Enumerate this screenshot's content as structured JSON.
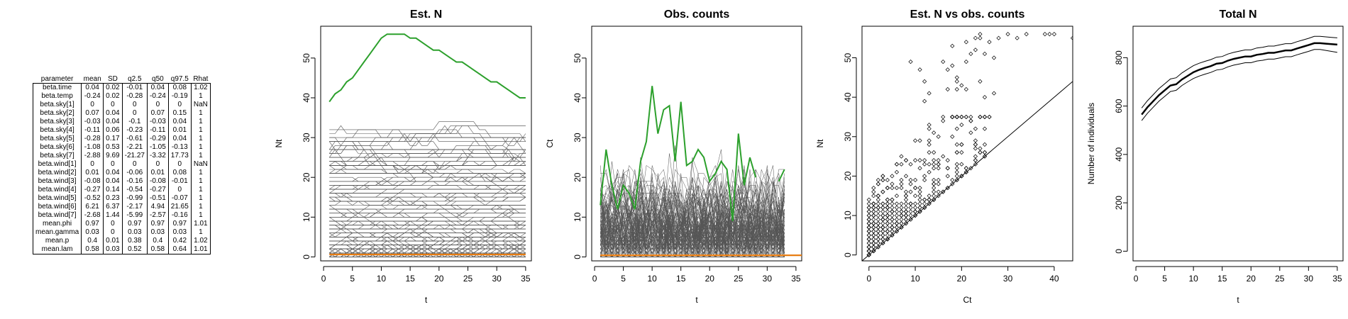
{
  "table": {
    "headers": [
      "parameter",
      "mean",
      "SD",
      "q2.5",
      "q50",
      "q97.5",
      "Rhat"
    ],
    "rows": [
      [
        "beta.time",
        "0.04",
        "0.02",
        "-0.01",
        "0.04",
        "0.08",
        "1.02"
      ],
      [
        "beta.temp",
        "-0.24",
        "0.02",
        "-0.28",
        "-0.24",
        "-0.19",
        "1"
      ],
      [
        "beta.sky[1]",
        "0",
        "0",
        "0",
        "0",
        "0",
        "NaN"
      ],
      [
        "beta.sky[2]",
        "0.07",
        "0.04",
        "0",
        "0.07",
        "0.15",
        "1"
      ],
      [
        "beta.sky[3]",
        "-0.03",
        "0.04",
        "-0.1",
        "-0.03",
        "0.04",
        "1"
      ],
      [
        "beta.sky[4]",
        "-0.11",
        "0.06",
        "-0.23",
        "-0.11",
        "0.01",
        "1"
      ],
      [
        "beta.sky[5]",
        "-0.28",
        "0.17",
        "-0.61",
        "-0.29",
        "0.04",
        "1"
      ],
      [
        "beta.sky[6]",
        "-1.08",
        "0.53",
        "-2.21",
        "-1.05",
        "-0.13",
        "1"
      ],
      [
        "beta.sky[7]",
        "-2.88",
        "9.69",
        "-21.27",
        "-3.32",
        "17.73",
        "1"
      ],
      [
        "beta.wind[1]",
        "0",
        "0",
        "0",
        "0",
        "0",
        "NaN"
      ],
      [
        "beta.wind[2]",
        "0.01",
        "0.04",
        "-0.06",
        "0.01",
        "0.08",
        "1"
      ],
      [
        "beta.wind[3]",
        "-0.08",
        "0.04",
        "-0.16",
        "-0.08",
        "-0.01",
        "1"
      ],
      [
        "beta.wind[4]",
        "-0.27",
        "0.14",
        "-0.54",
        "-0.27",
        "0",
        "1"
      ],
      [
        "beta.wind[5]",
        "-0.52",
        "0.23",
        "-0.99",
        "-0.51",
        "-0.07",
        "1"
      ],
      [
        "beta.wind[6]",
        "6.21",
        "6.37",
        "-2.17",
        "4.94",
        "21.65",
        "1"
      ],
      [
        "beta.wind[7]",
        "-2.68",
        "1.44",
        "-5.99",
        "-2.57",
        "-0.16",
        "1"
      ],
      [
        "mean.phi",
        "0.97",
        "0",
        "0.97",
        "0.97",
        "0.97",
        "1.01"
      ],
      [
        "mean.gamma",
        "0.03",
        "0",
        "0.03",
        "0.03",
        "0.03",
        "1"
      ],
      [
        "mean.p",
        "0.4",
        "0.01",
        "0.38",
        "0.4",
        "0.42",
        "1.02"
      ],
      [
        "mean.lam",
        "0.58",
        "0.03",
        "0.52",
        "0.58",
        "0.64",
        "1.01"
      ]
    ]
  },
  "chart_data": [
    {
      "type": "line",
      "title": "Est. N",
      "xlabel": "t",
      "ylabel": "Nt",
      "xlim": [
        0,
        35
      ],
      "ylim": [
        0,
        56
      ],
      "xticks": [
        0,
        5,
        10,
        15,
        20,
        25,
        30,
        35
      ],
      "yticks": [
        0,
        10,
        20,
        30,
        40,
        50
      ],
      "grid": false,
      "highlight_series": {
        "color": "#2ca02c",
        "x": [
          1,
          2,
          3,
          4,
          5,
          6,
          7,
          8,
          9,
          10,
          11,
          12,
          13,
          14,
          15,
          16,
          17,
          18,
          19,
          20,
          21,
          22,
          23,
          24,
          25,
          26,
          27,
          28,
          29,
          30,
          31,
          32,
          33,
          34,
          35
        ],
        "y": [
          39,
          41,
          42,
          44,
          45,
          47,
          49,
          51,
          53,
          55,
          56,
          56,
          56,
          56,
          55,
          55,
          54,
          53,
          52,
          52,
          51,
          50,
          49,
          49,
          48,
          47,
          46,
          45,
          44,
          44,
          43,
          42,
          41,
          40,
          40
        ]
      },
      "low_series": {
        "color": "#e87d12",
        "value": 0.6
      },
      "sites": {
        "color": "#555555",
        "count": 267,
        "max_level": 30
      }
    },
    {
      "type": "line",
      "title": "Obs. counts",
      "xlabel": "t",
      "ylabel": "Ct",
      "xlim": [
        0,
        35
      ],
      "ylim": [
        0,
        56
      ],
      "xticks": [
        0,
        5,
        10,
        15,
        20,
        25,
        30,
        35
      ],
      "yticks": [
        0,
        10,
        20,
        30,
        40,
        50
      ],
      "grid": false,
      "highlight_series": {
        "color": "#2ca02c",
        "x": [
          1,
          2,
          3,
          4,
          5,
          6,
          7,
          8,
          9,
          10,
          11,
          12,
          13,
          14,
          15,
          16,
          17,
          18,
          19,
          20,
          21,
          22,
          23,
          24,
          25,
          26,
          27,
          28,
          32,
          33
        ],
        "y": [
          13,
          27,
          18,
          12,
          18,
          16,
          12,
          24,
          29,
          43,
          31,
          37,
          38,
          24,
          39,
          23,
          24,
          27,
          25,
          19,
          21,
          24,
          22,
          9,
          31,
          18,
          25,
          20,
          19,
          22
        ]
      },
      "low_series": {
        "color": "#e87d12",
        "value": 0.4
      },
      "sites": {
        "color": "#555555",
        "count": 267,
        "max_level": 30
      }
    },
    {
      "type": "scatter",
      "title": "Est. N vs obs. counts",
      "xlabel": "Ct",
      "ylabel": "Nt",
      "xlim": [
        0,
        44
      ],
      "ylim": [
        0,
        56
      ],
      "xticks": [
        0,
        10,
        20,
        30,
        40
      ],
      "yticks": [
        0,
        10,
        20,
        30,
        40,
        50
      ],
      "grid": false,
      "reference_line": "y = x",
      "upper_points": [
        [
          9,
          49
        ],
        [
          11,
          47
        ],
        [
          12,
          44
        ],
        [
          12,
          39
        ],
        [
          13,
          41
        ],
        [
          16,
          49
        ],
        [
          17,
          47
        ],
        [
          17,
          42
        ],
        [
          18,
          48
        ],
        [
          18,
          53
        ],
        [
          19,
          44
        ],
        [
          19,
          42
        ],
        [
          19,
          45
        ],
        [
          20,
          43
        ],
        [
          21,
          42
        ],
        [
          21,
          49
        ],
        [
          21,
          54
        ],
        [
          22,
          51
        ],
        [
          23,
          55
        ],
        [
          23,
          52
        ],
        [
          24,
          56
        ],
        [
          24,
          55
        ],
        [
          24,
          44
        ],
        [
          25,
          51
        ],
        [
          25,
          40
        ],
        [
          26,
          54
        ],
        [
          27,
          50
        ],
        [
          27,
          41
        ],
        [
          28,
          55
        ],
        [
          30,
          56
        ],
        [
          32,
          55
        ],
        [
          34,
          56
        ],
        [
          38,
          56
        ],
        [
          39,
          56
        ],
        [
          40,
          56
        ],
        [
          44,
          55
        ]
      ],
      "mass": {
        "color": "#000000",
        "max_x": 26,
        "count": 330
      }
    },
    {
      "type": "line",
      "title": "Total N",
      "xlabel": "t",
      "ylabel": "Number of individuals",
      "xlim": [
        0,
        35
      ],
      "ylim": [
        0,
        900
      ],
      "xticks": [
        0,
        5,
        10,
        15,
        20,
        25,
        30,
        35
      ],
      "yticks": [
        0,
        200,
        400,
        600,
        800
      ],
      "grid": false,
      "x": [
        1,
        2,
        3,
        4,
        5,
        6,
        7,
        8,
        9,
        10,
        11,
        12,
        13,
        14,
        15,
        16,
        17,
        18,
        19,
        20,
        21,
        22,
        23,
        24,
        25,
        26,
        27,
        28,
        29,
        30,
        31,
        32,
        33,
        34,
        35
      ],
      "series": [
        {
          "values": [
            565,
            595,
            620,
            645,
            665,
            685,
            690,
            710,
            725,
            740,
            750,
            758,
            765,
            775,
            778,
            788,
            795,
            800,
            805,
            805,
            812,
            815,
            820,
            820,
            825,
            830,
            830,
            838,
            845,
            852,
            860,
            860,
            858,
            856,
            854
          ],
          "width": 2.5
        },
        {
          "values": [
            592,
            622,
            647,
            672,
            692,
            712,
            717,
            737,
            752,
            767,
            777,
            785,
            792,
            802,
            805,
            815,
            822,
            827,
            832,
            832,
            840,
            843,
            848,
            848,
            853,
            858,
            858,
            866,
            873,
            880,
            888,
            888,
            886,
            884,
            882
          ],
          "width": 1
        },
        {
          "values": [
            540,
            570,
            595,
            620,
            640,
            660,
            665,
            685,
            700,
            714,
            724,
            732,
            739,
            749,
            752,
            762,
            769,
            774,
            779,
            779,
            786,
            789,
            794,
            794,
            799,
            804,
            804,
            812,
            819,
            826,
            834,
            834,
            830,
            826,
            822
          ],
          "width": 1
        }
      ]
    }
  ]
}
